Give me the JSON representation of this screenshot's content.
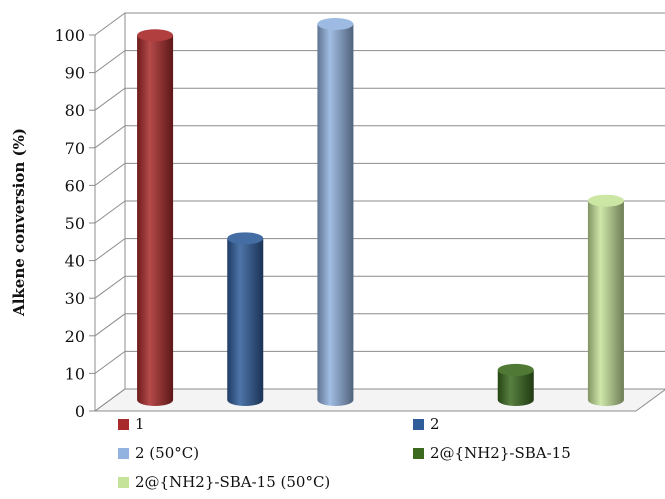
{
  "chart_data": {
    "type": "bar",
    "style": "3d-cylinder",
    "ylabel": "Alkene conversion (%)",
    "ylim": [
      0,
      100
    ],
    "yticks": [
      0,
      10,
      20,
      30,
      40,
      50,
      60,
      70,
      80,
      90,
      100
    ],
    "grid": true,
    "legend_position": "bottom",
    "series": [
      {
        "name": "1",
        "value": 97,
        "color": "#a82a2a"
      },
      {
        "name": "2",
        "value": 43,
        "color": "#2f5d9a"
      },
      {
        "name": "2 (50°C)",
        "value": 100,
        "color": "#92b3df"
      },
      {
        "name": "2@{NH2}-SBA-15",
        "value": 8,
        "color": "#3b6a1e"
      },
      {
        "name": "2@{NH2}-SBA-15 (50°C)",
        "value": 53,
        "color": "#c6e39a"
      }
    ],
    "bar_slots": [
      0,
      1,
      2,
      4,
      5
    ]
  }
}
